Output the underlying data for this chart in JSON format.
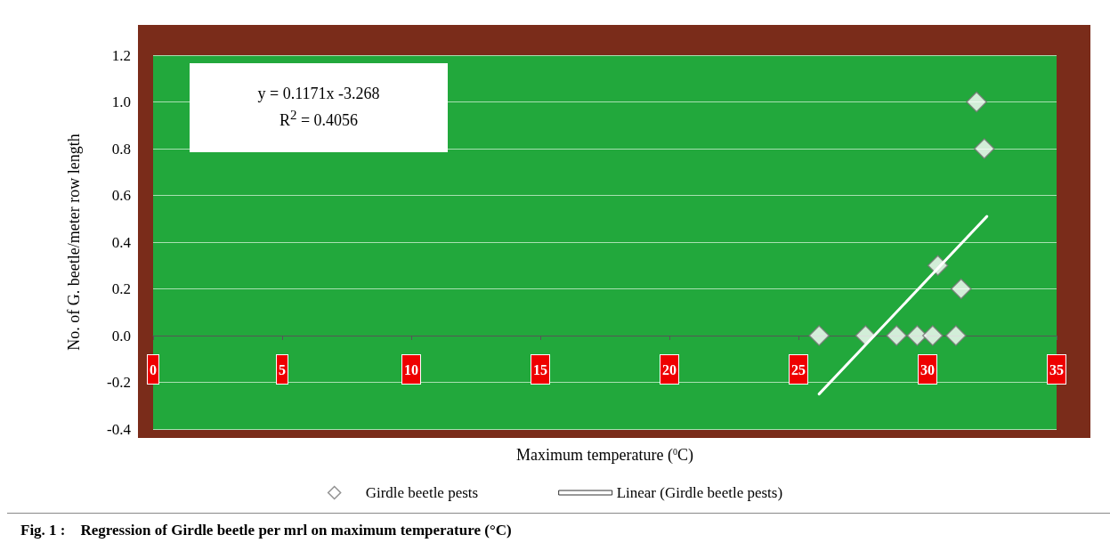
{
  "chart_data": {
    "type": "scatter",
    "title": "Fig. 1 :    Regression of Girdle beetle per mrl on maximum temperature (°C)",
    "xlabel": "Maximum temperature ($^{0}$C)",
    "ylabel": "No. of G. beetle/meter row length",
    "annotations": [
      "y = 0.1171x -3.268",
      "R$^{2}$ = 0.4056"
    ],
    "series": [
      {
        "name": "Girdle beetle pests",
        "color": "#ffffff",
        "x": [
          25.8,
          27.6,
          28.8,
          29.6,
          30.2,
          31.1,
          30.4,
          31.3,
          31.9,
          32.2
        ],
        "values": [
          0,
          0,
          0,
          0,
          0,
          0,
          0.3,
          0.2,
          1.0,
          0.8
        ]
      },
      {
        "name": "Linear (Girdle beetle pests)",
        "type": "line",
        "marker": "none",
        "color": "#ffffff",
        "x": [
          25.8,
          32.3
        ],
        "values": [
          -0.25,
          0.51
        ]
      }
    ],
    "xlim": [
      0,
      35
    ],
    "xticks": [
      0,
      5,
      10,
      15,
      20,
      25,
      30,
      35
    ],
    "ylim": [
      -0.4,
      1.2
    ],
    "yticks": [
      {
        "value": -0.4,
        "label": "-0.4"
      },
      {
        "value": -0.2,
        "label": "-0.2"
      },
      {
        "value": 0,
        "label": "0.0"
      },
      {
        "value": 0.2,
        "label": "0.2"
      },
      {
        "value": 0.4,
        "label": "0.4"
      },
      {
        "value": 0.6,
        "label": "0.6"
      },
      {
        "value": 0.8,
        "label": "0.8"
      },
      {
        "value": 1,
        "label": "1.0"
      },
      {
        "value": 1.2,
        "label": "1.2"
      }
    ],
    "grid": "y",
    "legend": "bottom",
    "marker": "diamond",
    "line_style": "solid"
  }
}
